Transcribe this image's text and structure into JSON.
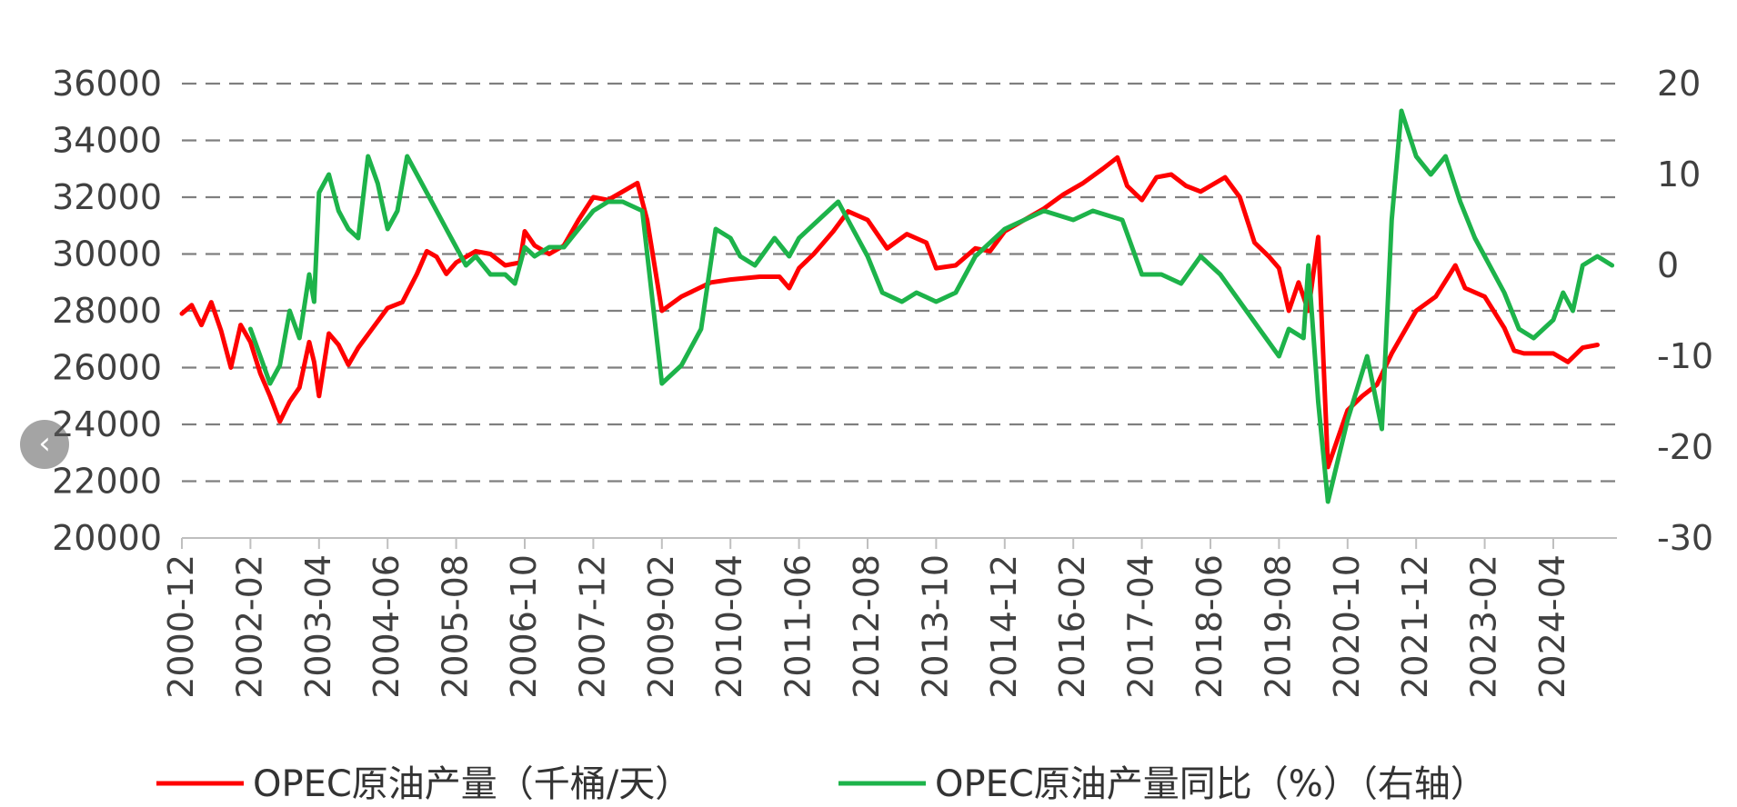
{
  "colors": {
    "production": "#ff0000",
    "yoy": "#1db34a",
    "grid": "#7f7f7f",
    "axis": "#bfbfbf"
  },
  "nav": {
    "prev_icon": "chevron-left-icon",
    "prev_glyph": "‹"
  },
  "chart_data": {
    "type": "line",
    "grid": "horizontal-dashed",
    "legend_position": "bottom",
    "x_tick_labels": [
      "2000-12",
      "2002-02",
      "2003-04",
      "2004-06",
      "2005-08",
      "2006-10",
      "2007-12",
      "2009-02",
      "2010-04",
      "2011-06",
      "2012-08",
      "2013-10",
      "2014-12",
      "2016-02",
      "2017-04",
      "2018-06",
      "2019-08",
      "2020-10",
      "2021-12",
      "2023-02",
      "2024-04"
    ],
    "y_left": {
      "range": [
        20000,
        36000
      ],
      "ticks": [
        "20000",
        "22000",
        "24000",
        "26000",
        "28000",
        "30000",
        "32000",
        "34000",
        "36000"
      ]
    },
    "y_right": {
      "range": [
        -30,
        20
      ],
      "ticks": [
        "-30",
        "-20",
        "-10",
        "0",
        "10",
        "20"
      ]
    },
    "series": [
      {
        "name": "OPEC原油产量（千桶/天）",
        "axis": "left",
        "color": "#ff0000",
        "points": [
          [
            "2000-12",
            27900
          ],
          [
            "2001-02",
            28200
          ],
          [
            "2001-04",
            27500
          ],
          [
            "2001-06",
            28300
          ],
          [
            "2001-08",
            27300
          ],
          [
            "2001-10",
            26000
          ],
          [
            "2001-12",
            27500
          ],
          [
            "2002-02",
            26900
          ],
          [
            "2002-04",
            25800
          ],
          [
            "2002-06",
            25000
          ],
          [
            "2002-08",
            24100
          ],
          [
            "2002-10",
            24800
          ],
          [
            "2002-12",
            25300
          ],
          [
            "2003-02",
            26900
          ],
          [
            "2003-03",
            26200
          ],
          [
            "2003-04",
            25000
          ],
          [
            "2003-06",
            27200
          ],
          [
            "2003-08",
            26800
          ],
          [
            "2003-10",
            26100
          ],
          [
            "2003-12",
            26700
          ],
          [
            "2004-03",
            27400
          ],
          [
            "2004-06",
            28100
          ],
          [
            "2004-09",
            28300
          ],
          [
            "2004-12",
            29300
          ],
          [
            "2005-02",
            30100
          ],
          [
            "2005-04",
            29900
          ],
          [
            "2005-06",
            29300
          ],
          [
            "2005-08",
            29700
          ],
          [
            "2005-12",
            30100
          ],
          [
            "2006-03",
            30000
          ],
          [
            "2006-06",
            29600
          ],
          [
            "2006-09",
            29700
          ],
          [
            "2006-10",
            30800
          ],
          [
            "2006-12",
            30300
          ],
          [
            "2007-03",
            30000
          ],
          [
            "2007-06",
            30300
          ],
          [
            "2007-09",
            31200
          ],
          [
            "2007-12",
            32000
          ],
          [
            "2008-03",
            31900
          ],
          [
            "2008-06",
            32200
          ],
          [
            "2008-09",
            32500
          ],
          [
            "2008-11",
            31200
          ],
          [
            "2009-02",
            28000
          ],
          [
            "2009-06",
            28500
          ],
          [
            "2009-12",
            29000
          ],
          [
            "2010-04",
            29100
          ],
          [
            "2010-10",
            29200
          ],
          [
            "2011-02",
            29200
          ],
          [
            "2011-04",
            28800
          ],
          [
            "2011-06",
            29500
          ],
          [
            "2011-09",
            30000
          ],
          [
            "2012-01",
            30800
          ],
          [
            "2012-04",
            31500
          ],
          [
            "2012-08",
            31200
          ],
          [
            "2012-12",
            30200
          ],
          [
            "2013-04",
            30700
          ],
          [
            "2013-08",
            30400
          ],
          [
            "2013-10",
            29500
          ],
          [
            "2014-02",
            29600
          ],
          [
            "2014-06",
            30200
          ],
          [
            "2014-09",
            30100
          ],
          [
            "2014-12",
            30800
          ],
          [
            "2015-04",
            31200
          ],
          [
            "2015-08",
            31600
          ],
          [
            "2015-12",
            32100
          ],
          [
            "2016-04",
            32500
          ],
          [
            "2016-08",
            33000
          ],
          [
            "2016-11",
            33400
          ],
          [
            "2017-01",
            32400
          ],
          [
            "2017-04",
            31900
          ],
          [
            "2017-07",
            32700
          ],
          [
            "2017-10",
            32800
          ],
          [
            "2018-01",
            32400
          ],
          [
            "2018-04",
            32200
          ],
          [
            "2018-06",
            32400
          ],
          [
            "2018-09",
            32700
          ],
          [
            "2018-12",
            32000
          ],
          [
            "2019-03",
            30400
          ],
          [
            "2019-06",
            29900
          ],
          [
            "2019-08",
            29500
          ],
          [
            "2019-10",
            28000
          ],
          [
            "2019-12",
            29000
          ],
          [
            "2020-02",
            28000
          ],
          [
            "2020-04",
            30600
          ],
          [
            "2020-06",
            22500
          ],
          [
            "2020-09",
            24000
          ],
          [
            "2020-10",
            24500
          ],
          [
            "2021-01",
            25000
          ],
          [
            "2021-04",
            25400
          ],
          [
            "2021-07",
            26500
          ],
          [
            "2021-12",
            28000
          ],
          [
            "2022-04",
            28500
          ],
          [
            "2022-08",
            29600
          ],
          [
            "2022-10",
            28800
          ],
          [
            "2023-02",
            28500
          ],
          [
            "2023-06",
            27400
          ],
          [
            "2023-08",
            26600
          ],
          [
            "2023-10",
            26500
          ],
          [
            "2024-01",
            26500
          ],
          [
            "2024-04",
            26500
          ],
          [
            "2024-07",
            26200
          ],
          [
            "2024-10",
            26700
          ],
          [
            "2025-01",
            26800
          ]
        ]
      },
      {
        "name": "OPEC原油产量同比（%）（右轴）",
        "axis": "right",
        "color": "#1db34a",
        "points": [
          [
            "2002-02",
            -7
          ],
          [
            "2002-04",
            -10
          ],
          [
            "2002-06",
            -13
          ],
          [
            "2002-08",
            -11
          ],
          [
            "2002-10",
            -5
          ],
          [
            "2002-12",
            -8
          ],
          [
            "2003-02",
            -1
          ],
          [
            "2003-03",
            -4
          ],
          [
            "2003-04",
            8
          ],
          [
            "2003-06",
            10
          ],
          [
            "2003-08",
            6
          ],
          [
            "2003-10",
            4
          ],
          [
            "2003-12",
            3
          ],
          [
            "2004-02",
            12
          ],
          [
            "2004-04",
            9
          ],
          [
            "2004-06",
            4
          ],
          [
            "2004-08",
            6
          ],
          [
            "2004-10",
            12
          ],
          [
            "2004-12",
            10
          ],
          [
            "2005-03",
            7
          ],
          [
            "2005-06",
            4
          ],
          [
            "2005-08",
            2
          ],
          [
            "2005-10",
            0
          ],
          [
            "2005-12",
            1
          ],
          [
            "2006-03",
            -1
          ],
          [
            "2006-06",
            -1
          ],
          [
            "2006-08",
            -2
          ],
          [
            "2006-10",
            2
          ],
          [
            "2006-12",
            1
          ],
          [
            "2007-03",
            2
          ],
          [
            "2007-06",
            2
          ],
          [
            "2007-09",
            4
          ],
          [
            "2007-12",
            6
          ],
          [
            "2008-03",
            7
          ],
          [
            "2008-06",
            7
          ],
          [
            "2008-10",
            6
          ],
          [
            "2009-02",
            -13
          ],
          [
            "2009-06",
            -11
          ],
          [
            "2009-10",
            -7
          ],
          [
            "2010-01",
            4
          ],
          [
            "2010-04",
            3
          ],
          [
            "2010-06",
            1
          ],
          [
            "2010-09",
            0
          ],
          [
            "2011-01",
            3
          ],
          [
            "2011-04",
            1
          ],
          [
            "2011-06",
            3
          ],
          [
            "2011-10",
            5
          ],
          [
            "2012-02",
            7
          ],
          [
            "2012-05",
            4
          ],
          [
            "2012-08",
            1
          ],
          [
            "2012-11",
            -3
          ],
          [
            "2013-03",
            -4
          ],
          [
            "2013-06",
            -3
          ],
          [
            "2013-10",
            -4
          ],
          [
            "2014-02",
            -3
          ],
          [
            "2014-06",
            1
          ],
          [
            "2014-12",
            4
          ],
          [
            "2015-04",
            5
          ],
          [
            "2015-08",
            6
          ],
          [
            "2016-02",
            5
          ],
          [
            "2016-06",
            6
          ],
          [
            "2016-12",
            5
          ],
          [
            "2017-04",
            -1
          ],
          [
            "2017-08",
            -1
          ],
          [
            "2017-12",
            -2
          ],
          [
            "2018-04",
            1
          ],
          [
            "2018-08",
            -1
          ],
          [
            "2018-12",
            -4
          ],
          [
            "2019-04",
            -7
          ],
          [
            "2019-08",
            -10
          ],
          [
            "2019-10",
            -7
          ],
          [
            "2020-01",
            -8
          ],
          [
            "2020-02",
            0
          ],
          [
            "2020-04",
            -15
          ],
          [
            "2020-06",
            -26
          ],
          [
            "2020-10",
            -17
          ],
          [
            "2021-02",
            -10
          ],
          [
            "2021-05",
            -18
          ],
          [
            "2021-07",
            5
          ],
          [
            "2021-09",
            17
          ],
          [
            "2021-12",
            12
          ],
          [
            "2022-03",
            10
          ],
          [
            "2022-06",
            12
          ],
          [
            "2022-09",
            7
          ],
          [
            "2022-12",
            3
          ],
          [
            "2023-02",
            1
          ],
          [
            "2023-06",
            -3
          ],
          [
            "2023-09",
            -7
          ],
          [
            "2023-12",
            -8
          ],
          [
            "2024-04",
            -6
          ],
          [
            "2024-06",
            -3
          ],
          [
            "2024-08",
            -5
          ],
          [
            "2024-10",
            0
          ],
          [
            "2025-01",
            1
          ],
          [
            "2025-04",
            0
          ]
        ]
      }
    ]
  }
}
